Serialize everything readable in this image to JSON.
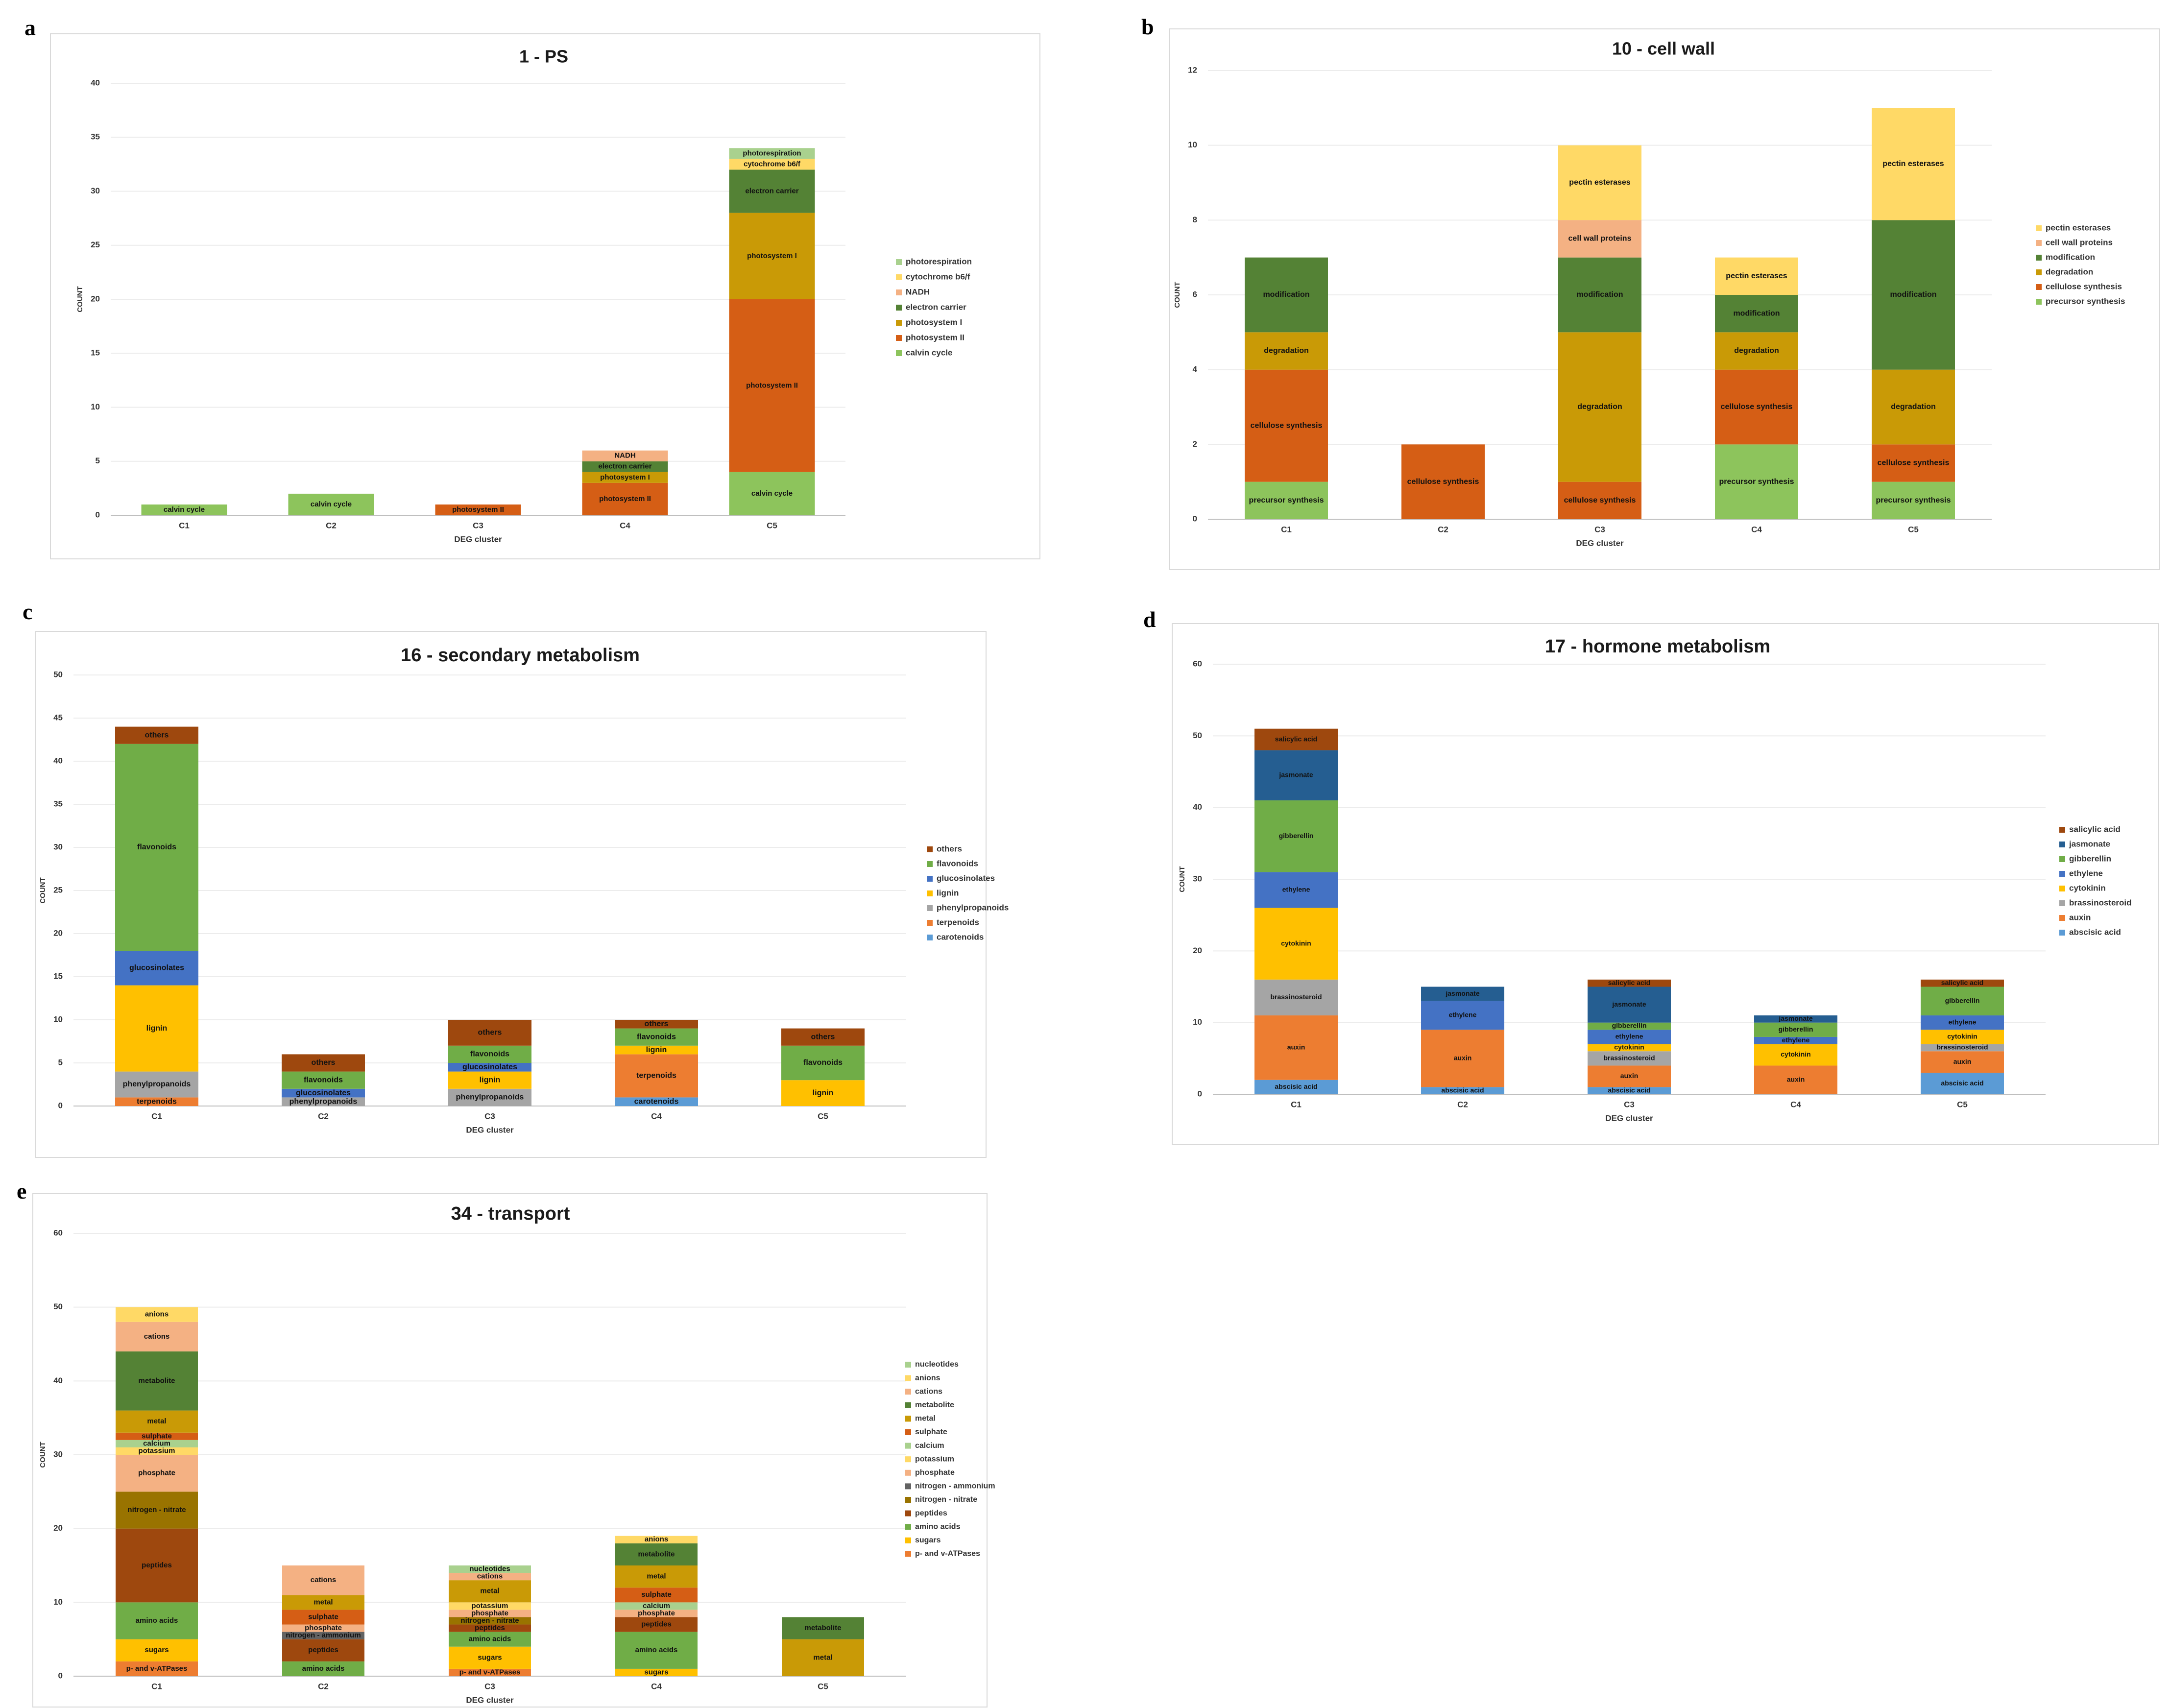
{
  "panel_letters": [
    "a",
    "b",
    "c",
    "d",
    "e"
  ],
  "colors": {
    "light_green": "#8dc45c",
    "mid_green": "#70ad47",
    "dark_green": "#548235",
    "orange": "#ed7d31",
    "dark_orange": "#d55e15",
    "gold": "#d4a00c",
    "yellow": "#ffc000",
    "pale_yellow": "#ffd966",
    "peach": "#f4b183",
    "blue": "#4472c4",
    "light_blue": "#5b9bd5",
    "navy": "#255e91",
    "grey": "#a5a5a5",
    "brown": "#9e480e",
    "olive": "#997300",
    "pale_green": "#a9d18e"
  },
  "chart_data": [
    {
      "type": "bar",
      "title": "1 - PS",
      "xlabel": "DEG cluster",
      "ylabel": "COUNT",
      "ylim": [
        0,
        40
      ],
      "ytick_step": 5,
      "categories": [
        "C1",
        "C2",
        "C3",
        "C4",
        "C5"
      ],
      "series": [
        {
          "name": "calvin cycle",
          "color": "#8dc45c",
          "values": [
            1,
            2,
            0,
            0,
            4
          ]
        },
        {
          "name": "photosystem II",
          "color": "#d55e15",
          "values": [
            0,
            0,
            1,
            3,
            16
          ]
        },
        {
          "name": "photosystem I",
          "color": "#c99a06",
          "values": [
            0,
            0,
            0,
            1,
            8
          ]
        },
        {
          "name": "electron carrier",
          "color": "#548235",
          "values": [
            0,
            0,
            0,
            1,
            4
          ]
        },
        {
          "name": "NADH",
          "color": "#f4b183",
          "values": [
            0,
            0,
            0,
            1,
            0
          ]
        },
        {
          "name": "cytochrome b6/f",
          "color": "#ffd966",
          "values": [
            0,
            0,
            0,
            0,
            1
          ]
        },
        {
          "name": "photorespiration",
          "color": "#a9d18e",
          "values": [
            0,
            0,
            0,
            0,
            1
          ]
        }
      ]
    },
    {
      "type": "bar",
      "title": "10 - cell wall",
      "xlabel": "DEG cluster",
      "ylabel": "COUNT",
      "ylim": [
        0,
        12
      ],
      "ytick_step": 2,
      "categories": [
        "C1",
        "C2",
        "C3",
        "C4",
        "C5"
      ],
      "series": [
        {
          "name": "precursor synthesis",
          "color": "#8dc45c",
          "values": [
            1,
            0,
            0,
            2,
            1
          ]
        },
        {
          "name": "cellulose synthesis",
          "color": "#d55e15",
          "values": [
            3,
            2,
            1,
            2,
            1
          ]
        },
        {
          "name": "degradation",
          "color": "#c99a06",
          "values": [
            1,
            0,
            4,
            1,
            2
          ]
        },
        {
          "name": "modification",
          "color": "#548235",
          "values": [
            2,
            0,
            2,
            1,
            4
          ]
        },
        {
          "name": "cell wall proteins",
          "color": "#f4b183",
          "values": [
            0,
            0,
            1,
            0,
            0
          ]
        },
        {
          "name": "pectin esterases",
          "color": "#ffd966",
          "values": [
            0,
            0,
            2,
            1,
            3
          ]
        }
      ]
    },
    {
      "type": "bar",
      "title": "16 - secondary metabolism",
      "xlabel": "DEG cluster",
      "ylabel": "COUNT",
      "ylim": [
        0,
        50
      ],
      "ytick_step": 5,
      "categories": [
        "C1",
        "C2",
        "C3",
        "C4",
        "C5"
      ],
      "series": [
        {
          "name": "carotenoids",
          "color": "#5b9bd5",
          "values": [
            0,
            0,
            0,
            1,
            0
          ]
        },
        {
          "name": "terpenoids",
          "color": "#ed7d31",
          "values": [
            1,
            0,
            0,
            5,
            0
          ]
        },
        {
          "name": "phenylpropanoids",
          "color": "#a5a5a5",
          "values": [
            3,
            1,
            2,
            0,
            0
          ]
        },
        {
          "name": "lignin",
          "color": "#ffc000",
          "values": [
            10,
            0,
            2,
            1,
            3
          ]
        },
        {
          "name": "glucosinolates",
          "color": "#4472c4",
          "values": [
            4,
            1,
            1,
            0,
            0
          ]
        },
        {
          "name": "flavonoids",
          "color": "#70ad47",
          "values": [
            24,
            2,
            2,
            2,
            4
          ]
        },
        {
          "name": "others",
          "color": "#9e480e",
          "values": [
            2,
            2,
            3,
            1,
            2
          ]
        }
      ]
    },
    {
      "type": "bar",
      "title": "17 - hormone metabolism",
      "xlabel": "DEG cluster",
      "ylabel": "COUNT",
      "ylim": [
        0,
        60
      ],
      "ytick_step": 10,
      "categories": [
        "C1",
        "C2",
        "C3",
        "C4",
        "C5"
      ],
      "series": [
        {
          "name": "abscisic acid",
          "color": "#5b9bd5",
          "values": [
            2,
            1,
            1,
            0,
            3
          ]
        },
        {
          "name": "auxin",
          "color": "#ed7d31",
          "values": [
            9,
            8,
            3,
            4,
            3
          ]
        },
        {
          "name": "brassinosteroid",
          "color": "#a5a5a5",
          "values": [
            5,
            0,
            2,
            0,
            1
          ]
        },
        {
          "name": "cytokinin",
          "color": "#ffc000",
          "values": [
            10,
            0,
            1,
            3,
            2
          ]
        },
        {
          "name": "ethylene",
          "color": "#4472c4",
          "values": [
            5,
            4,
            2,
            1,
            2
          ]
        },
        {
          "name": "gibberellin",
          "color": "#70ad47",
          "values": [
            10,
            0,
            1,
            2,
            4
          ]
        },
        {
          "name": "jasmonate",
          "color": "#255e91",
          "values": [
            7,
            2,
            5,
            1,
            0
          ]
        },
        {
          "name": "salicylic acid",
          "color": "#9e480e",
          "values": [
            3,
            0,
            1,
            0,
            1
          ]
        }
      ]
    },
    {
      "type": "bar",
      "title": "34 - transport",
      "xlabel": "DEG cluster",
      "ylabel": "COUNT",
      "ylim": [
        0,
        60
      ],
      "ytick_step": 10,
      "categories": [
        "C1",
        "C2",
        "C3",
        "C4",
        "C5"
      ],
      "series": [
        {
          "name": "p- and v-ATPases",
          "color": "#ed7d31",
          "values": [
            2,
            0,
            1,
            0,
            0
          ]
        },
        {
          "name": "sugars",
          "color": "#ffc000",
          "values": [
            3,
            0,
            3,
            1,
            0
          ]
        },
        {
          "name": "amino acids",
          "color": "#70ad47",
          "values": [
            5,
            2,
            2,
            5,
            0
          ]
        },
        {
          "name": "peptides",
          "color": "#9e480e",
          "values": [
            10,
            3,
            1,
            2,
            0
          ]
        },
        {
          "name": "nitrogen - nitrate",
          "color": "#997300",
          "values": [
            5,
            0,
            1,
            0,
            0
          ]
        },
        {
          "name": "nitrogen - ammonium",
          "color": "#636363",
          "values": [
            0,
            1,
            0,
            0,
            0
          ]
        },
        {
          "name": "phosphate",
          "color": "#f4b183",
          "values": [
            5,
            1,
            1,
            1,
            0
          ]
        },
        {
          "name": "potassium",
          "color": "#ffd966",
          "values": [
            1,
            0,
            1,
            0,
            0
          ]
        },
        {
          "name": "calcium",
          "color": "#a9d18e",
          "values": [
            1,
            0,
            0,
            1,
            0
          ]
        },
        {
          "name": "sulphate",
          "color": "#d55e15",
          "values": [
            1,
            2,
            0,
            2,
            0
          ]
        },
        {
          "name": "metal",
          "color": "#c99a06",
          "values": [
            3,
            2,
            3,
            3,
            5
          ]
        },
        {
          "name": "metabolite",
          "color": "#548235",
          "values": [
            8,
            0,
            0,
            3,
            3
          ]
        },
        {
          "name": "cations",
          "color": "#f4b183",
          "values": [
            4,
            4,
            1,
            0,
            0
          ]
        },
        {
          "name": "anions",
          "color": "#ffd966",
          "values": [
            2,
            0,
            0,
            1,
            0
          ]
        },
        {
          "name": "nucleotides",
          "color": "#a9d18e",
          "values": [
            0,
            0,
            1,
            0,
            0
          ]
        }
      ]
    }
  ]
}
